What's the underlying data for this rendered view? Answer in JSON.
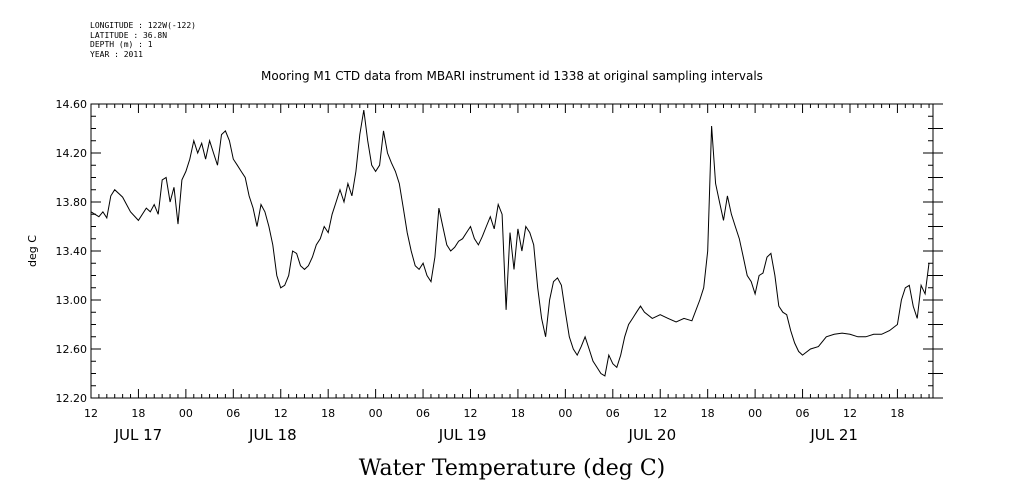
{
  "meta": {
    "longitude": "LONGITUDE : 122W(-122)",
    "latitude": "LATITUDE : 36.8N",
    "depth": "DEPTH (m) : 1",
    "year": "YEAR : 2011"
  },
  "chart_data": {
    "type": "line",
    "title": "Mooring M1 CTD data from MBARI instrument id 1338 at original sampling intervals",
    "xlabel": "Water Temperature (deg C)",
    "ylabel": "deg C",
    "ylim": [
      12.2,
      14.6
    ],
    "yticks": [
      "12.20",
      "12.60",
      "13.00",
      "13.40",
      "13.80",
      "14.20",
      "14.60"
    ],
    "xlim_hours": [
      0,
      106.5
    ],
    "xticks": [
      "12",
      "18",
      "00",
      "06",
      "12",
      "18",
      "00",
      "06",
      "12",
      "18",
      "00",
      "06",
      "12",
      "18",
      "00",
      "06",
      "12",
      "18"
    ],
    "day_labels": [
      {
        "label": "JUL 17",
        "hour": 6
      },
      {
        "label": "JUL 18",
        "hour": 23
      },
      {
        "label": "JUL 19",
        "hour": 47
      },
      {
        "label": "JUL 20",
        "hour": 71
      },
      {
        "label": "JUL 21",
        "hour": 94
      }
    ],
    "grid": false,
    "series": [
      {
        "x": [
          0,
          0.5,
          1,
          1.5,
          2,
          2.5,
          3,
          4,
          5,
          6,
          7,
          7.5,
          8,
          8.5,
          9,
          9.5,
          10,
          10.5,
          11,
          11.5,
          12,
          12.5,
          13,
          13.5,
          14,
          14.5,
          15,
          15.5,
          16,
          16.5,
          17,
          17.5,
          18,
          18.5,
          19,
          19.5,
          20,
          20.5,
          21,
          21.5,
          22,
          22.5,
          23,
          23.5,
          24,
          24.5,
          25,
          25.5,
          26,
          26.5,
          27,
          27.5,
          28,
          28.5,
          29,
          29.5,
          30,
          30.5,
          31,
          31.5,
          32,
          32.5,
          33,
          33.5,
          34,
          34.5,
          35,
          35.5,
          36,
          36.5,
          37,
          37.5,
          38,
          38.5,
          39,
          39.5,
          40,
          40.5,
          41,
          41.5,
          42,
          42.5,
          43,
          43.5,
          44,
          44.5,
          45,
          45.5,
          46,
          46.5,
          47,
          47.5,
          48,
          48.5,
          49,
          49.5,
          50,
          50.5,
          51,
          51.5,
          52,
          52.5,
          53,
          53.5,
          54,
          54.5,
          55,
          55.5,
          56,
          56.5,
          57,
          57.5,
          58,
          58.5,
          59,
          59.5,
          60,
          60.5,
          61,
          61.5,
          62,
          62.5,
          63,
          63.5,
          64,
          64.5,
          65,
          65.5,
          66,
          66.5,
          67,
          67.5,
          68,
          68.5,
          69,
          69.5,
          70,
          71,
          72,
          73,
          74,
          75,
          76,
          77,
          77.5,
          78,
          78.5,
          79,
          79.5,
          80,
          80.5,
          81,
          81.5,
          82,
          82.5,
          83,
          83.5,
          84,
          84.5,
          85,
          85.5,
          86,
          86.5,
          87,
          87.5,
          88,
          88.5,
          89,
          89.5,
          90,
          91,
          92,
          93,
          94,
          95,
          96,
          97,
          98,
          99,
          100,
          101,
          102,
          102.5,
          103,
          103.5,
          104,
          104.5,
          105,
          105.5,
          106
        ],
        "y": [
          13.72,
          13.7,
          13.68,
          13.72,
          13.67,
          13.85,
          13.9,
          13.84,
          13.72,
          13.65,
          13.75,
          13.72,
          13.78,
          13.7,
          13.98,
          14.0,
          13.8,
          13.92,
          13.62,
          13.98,
          14.05,
          14.15,
          14.3,
          14.2,
          14.28,
          14.15,
          14.3,
          14.2,
          14.1,
          14.35,
          14.38,
          14.3,
          14.15,
          14.1,
          14.05,
          14.0,
          13.85,
          13.75,
          13.6,
          13.78,
          13.72,
          13.6,
          13.45,
          13.2,
          13.1,
          13.12,
          13.2,
          13.4,
          13.38,
          13.28,
          13.25,
          13.28,
          13.35,
          13.45,
          13.5,
          13.6,
          13.55,
          13.7,
          13.8,
          13.9,
          13.8,
          13.95,
          13.85,
          14.05,
          14.35,
          14.55,
          14.3,
          14.1,
          14.05,
          14.1,
          14.38,
          14.2,
          14.12,
          14.05,
          13.95,
          13.75,
          13.55,
          13.4,
          13.28,
          13.25,
          13.3,
          13.2,
          13.15,
          13.35,
          13.75,
          13.6,
          13.45,
          13.4,
          13.43,
          13.48,
          13.5,
          13.55,
          13.6,
          13.5,
          13.45,
          13.52,
          13.6,
          13.68,
          13.58,
          13.78,
          13.7,
          12.92,
          13.55,
          13.25,
          13.58,
          13.4,
          13.6,
          13.55,
          13.45,
          13.1,
          12.85,
          12.7,
          13.0,
          13.15,
          13.18,
          13.12,
          12.9,
          12.7,
          12.6,
          12.55,
          12.62,
          12.7,
          12.6,
          12.5,
          12.45,
          12.4,
          12.38,
          12.55,
          12.48,
          12.45,
          12.55,
          12.7,
          12.8,
          12.85,
          12.9,
          12.95,
          12.9,
          12.85,
          12.88,
          12.85,
          12.82,
          12.85,
          12.83,
          13.0,
          13.1,
          13.4,
          14.42,
          13.95,
          13.8,
          13.65,
          13.85,
          13.7,
          13.6,
          13.5,
          13.35,
          13.2,
          13.15,
          13.05,
          13.2,
          13.22,
          13.35,
          13.38,
          13.2,
          12.95,
          12.9,
          12.88,
          12.75,
          12.65,
          12.58,
          12.55,
          12.6,
          12.62,
          12.7,
          12.72,
          12.73,
          12.72,
          12.7,
          12.7,
          12.72,
          12.72,
          12.75,
          12.8,
          13.0,
          13.1,
          13.12,
          12.95,
          12.85,
          13.12,
          13.05,
          13.3
        ]
      }
    ]
  }
}
